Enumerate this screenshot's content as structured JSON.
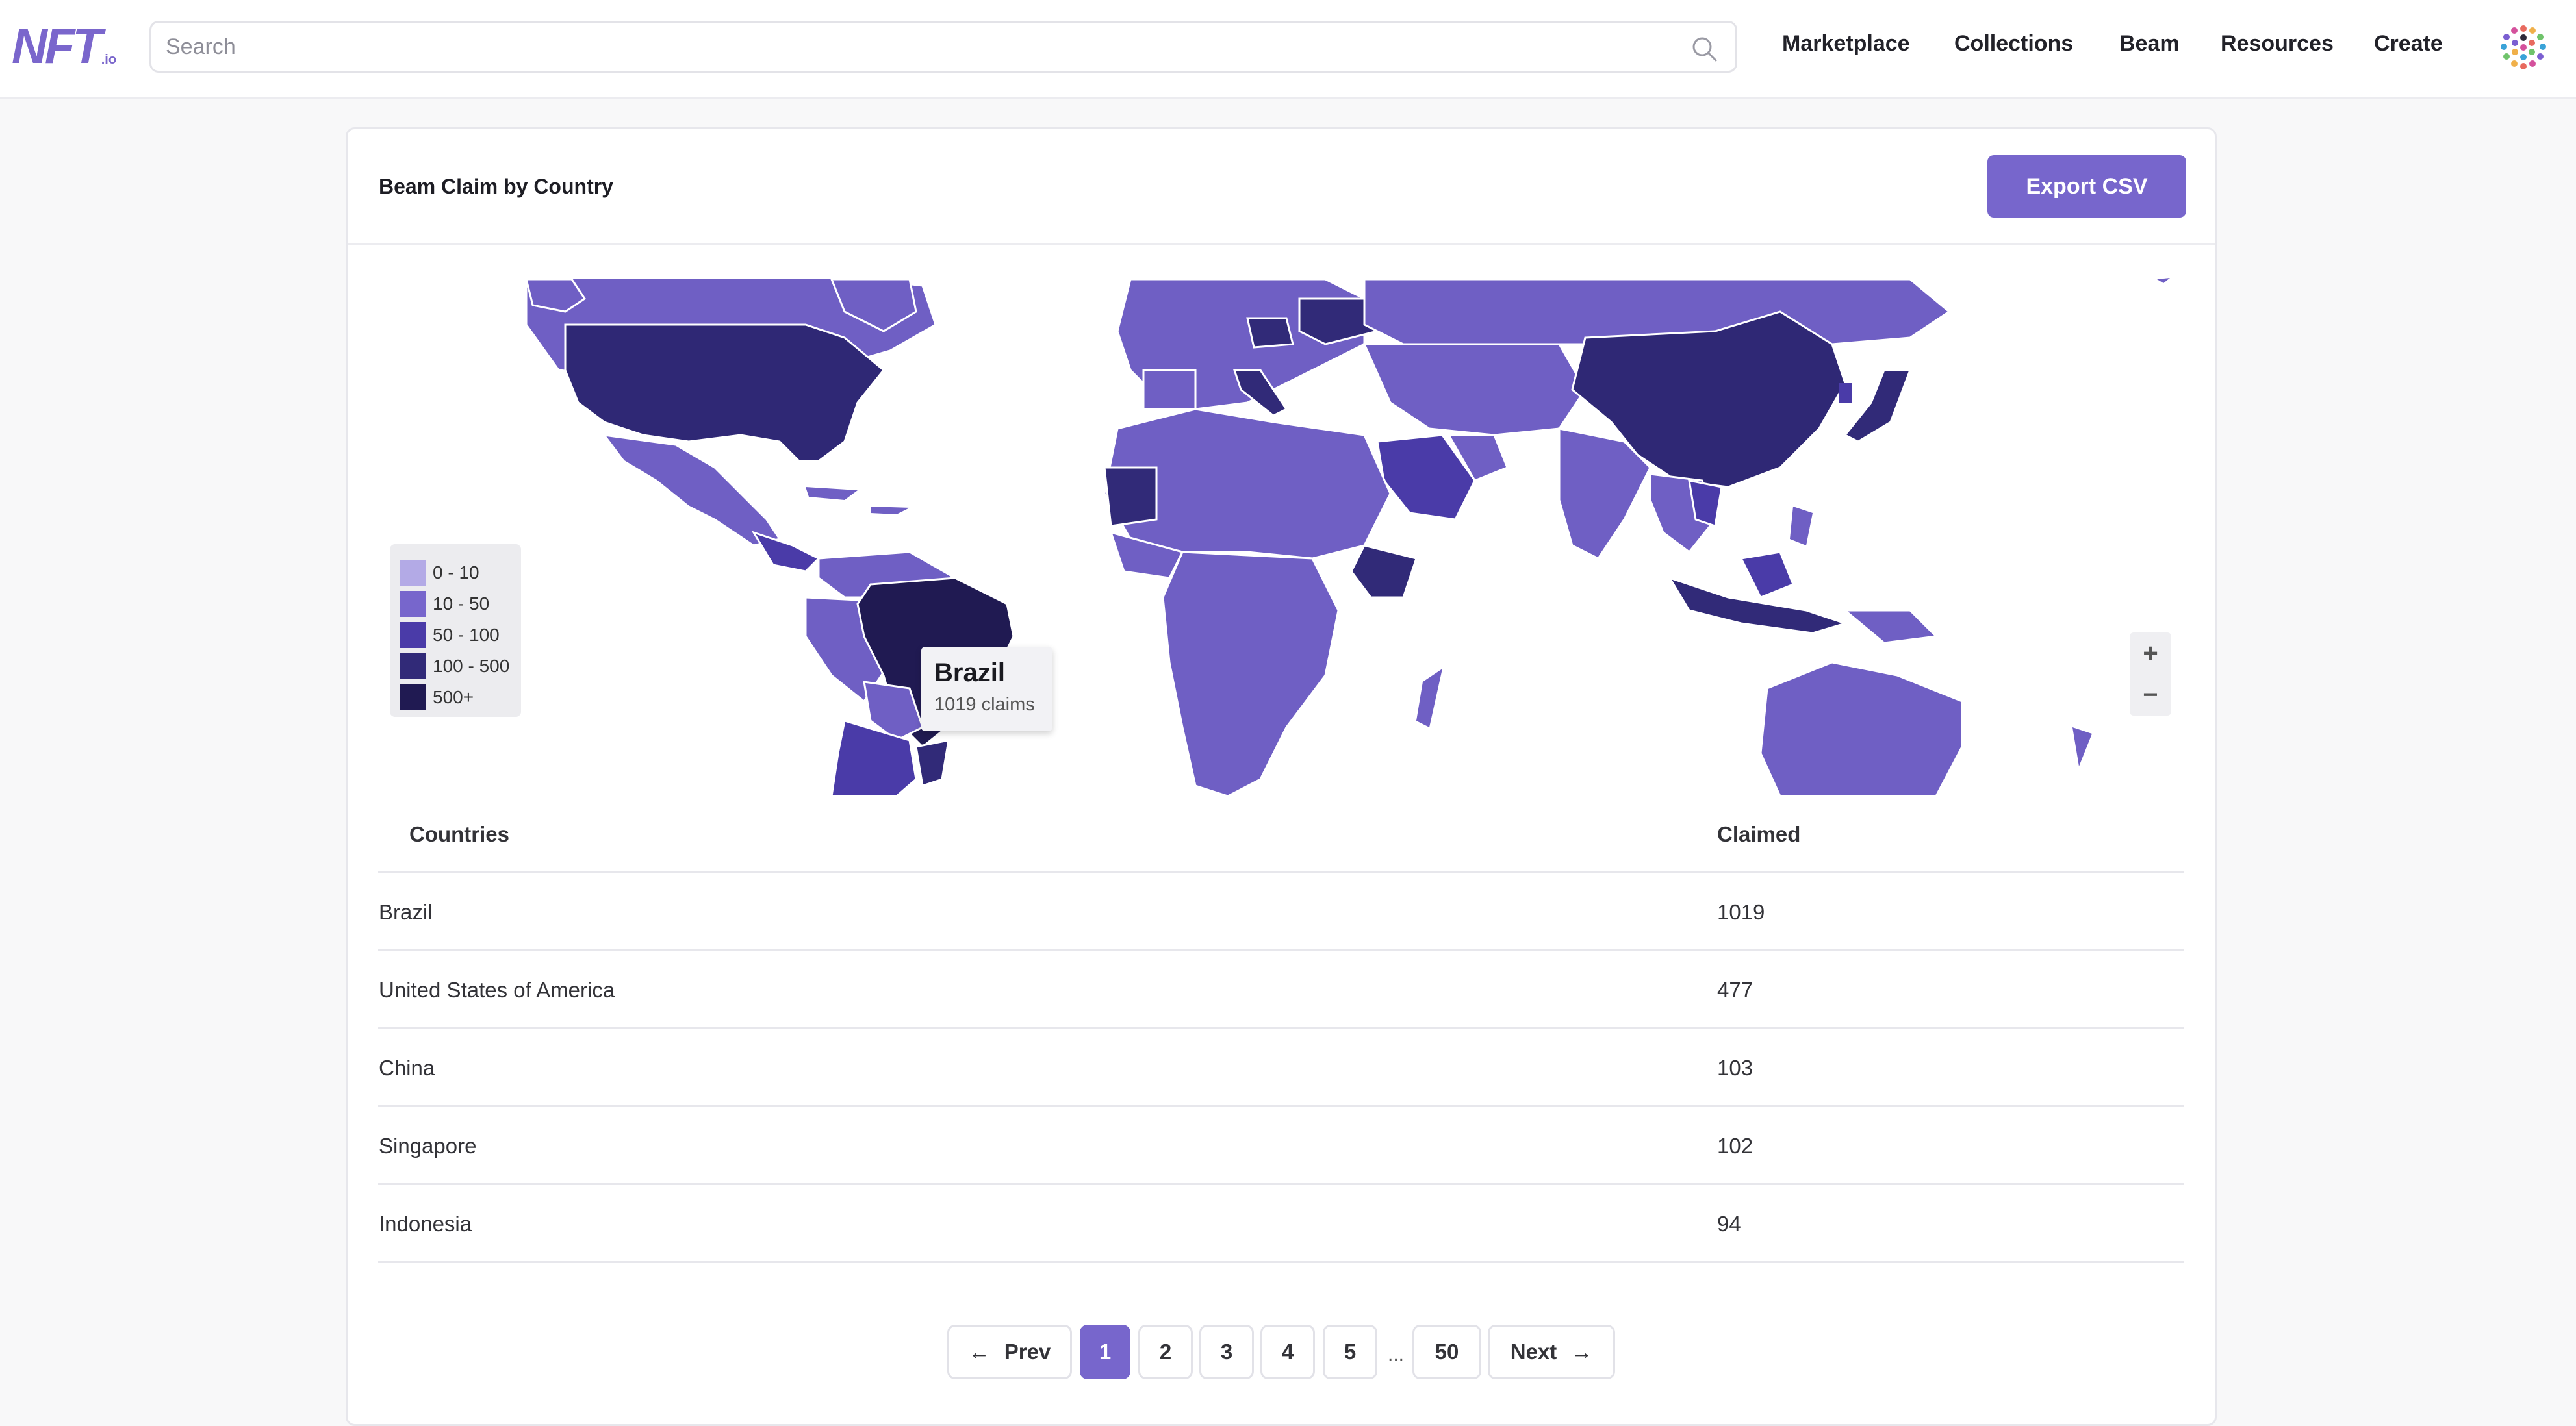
{
  "header": {
    "logo_text": "NFT",
    "logo_sub": ".io",
    "search_placeholder": "Search",
    "nav": [
      "Marketplace",
      "Collections",
      "Beam",
      "Resources",
      "Create"
    ]
  },
  "card": {
    "title": "Beam Claim by Country",
    "export_label": "Export CSV"
  },
  "map": {
    "legend": [
      {
        "label": "0 - 10",
        "color": "#b3aae6"
      },
      {
        "label": "10 - 50",
        "color": "#7766cc"
      },
      {
        "label": "50 - 100",
        "color": "#4a3ba8"
      },
      {
        "label": "100 - 500",
        "color": "#312a78"
      },
      {
        "label": "500+",
        "color": "#201a52"
      }
    ],
    "tooltip": {
      "title": "Brazil",
      "subtitle": "1019 claims"
    },
    "zoom_in": "+",
    "zoom_out": "−"
  },
  "table": {
    "headers": {
      "country": "Countries",
      "claimed": "Claimed"
    },
    "rows": [
      {
        "country": "Brazil",
        "claimed": "1019"
      },
      {
        "country": "United States of America",
        "claimed": "477"
      },
      {
        "country": "China",
        "claimed": "103"
      },
      {
        "country": "Singapore",
        "claimed": "102"
      },
      {
        "country": "Indonesia",
        "claimed": "94"
      }
    ]
  },
  "pagination": {
    "prev": "Prev",
    "next": "Next",
    "pages": [
      "1",
      "2",
      "3",
      "4",
      "5"
    ],
    "ellipsis": "...",
    "last": "50",
    "current": "1"
  }
}
